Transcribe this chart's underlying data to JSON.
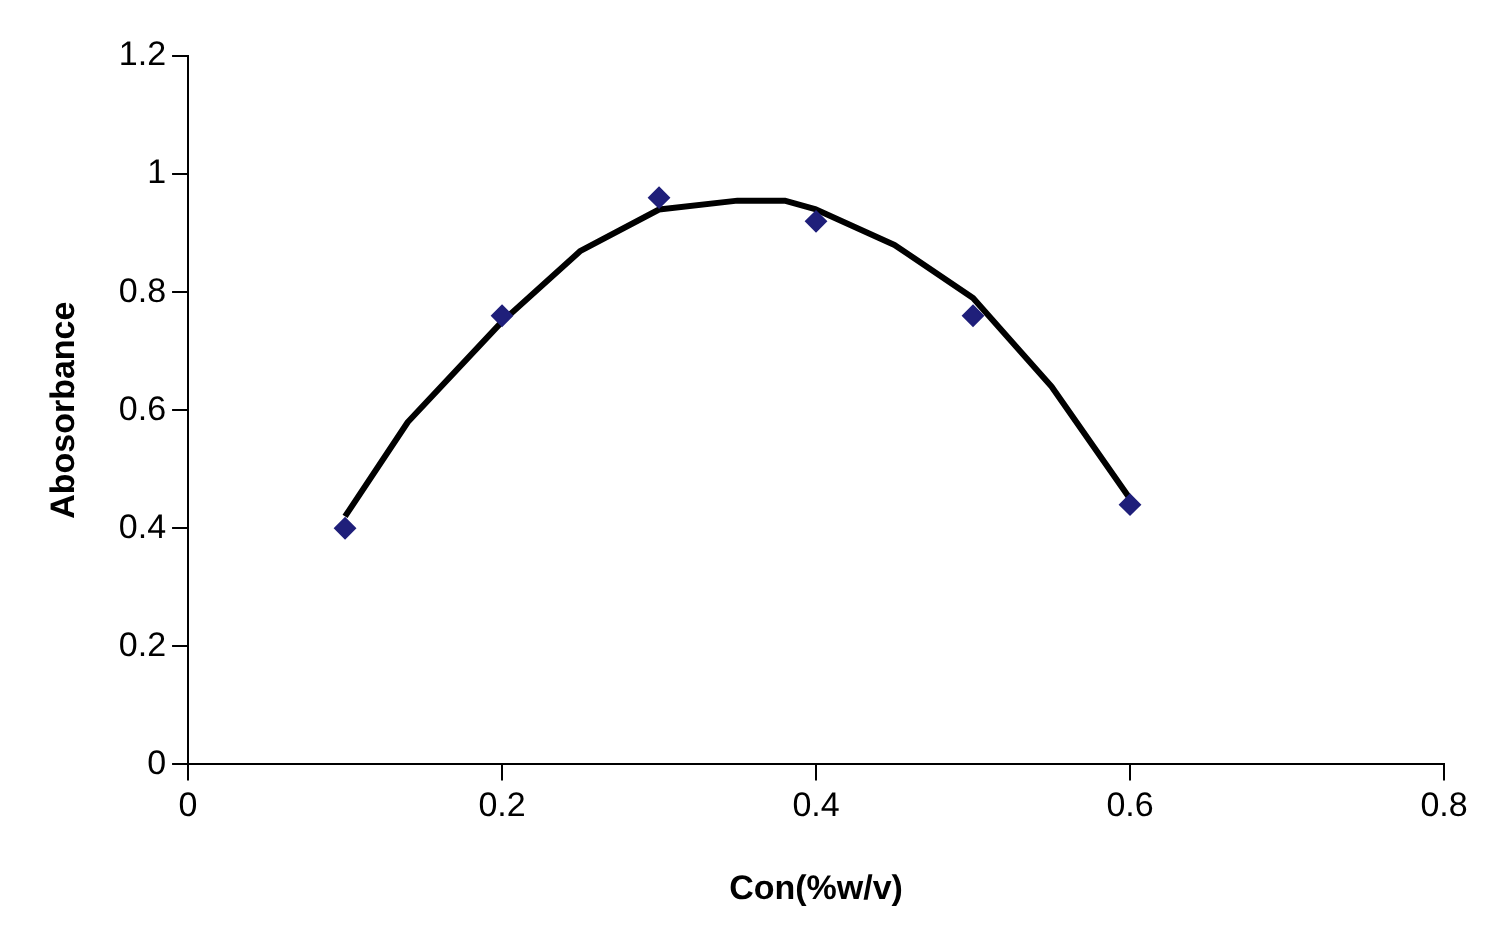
{
  "chart_data": {
    "type": "scatter",
    "xlabel": "Con(%w/v)",
    "ylabel": "Abosorbance",
    "xlim": [
      0,
      0.8
    ],
    "xticks": [
      0,
      0.2,
      0.4,
      0.6,
      0.8
    ],
    "ylim": [
      0,
      1.2
    ],
    "yticks": [
      0,
      0.2,
      0.4,
      0.6,
      0.8,
      1,
      1.2
    ],
    "grid": false,
    "legend": false,
    "series": [
      {
        "type": "scatter",
        "color": "#1f1f7a",
        "marker": "diamond",
        "x": [
          0.1,
          0.2,
          0.3,
          0.4,
          0.5,
          0.6
        ],
        "values": [
          0.4,
          0.76,
          0.96,
          0.92,
          0.76,
          0.44
        ]
      },
      {
        "type": "line",
        "color": "#000000",
        "marker": "none",
        "line_style": "solid",
        "x": [
          0.1,
          0.14,
          0.2,
          0.25,
          0.3,
          0.35,
          0.38,
          0.4,
          0.45,
          0.5,
          0.55,
          0.6
        ],
        "values": [
          0.42,
          0.58,
          0.75,
          0.87,
          0.94,
          0.955,
          0.955,
          0.94,
          0.88,
          0.79,
          0.64,
          0.45
        ]
      }
    ]
  }
}
